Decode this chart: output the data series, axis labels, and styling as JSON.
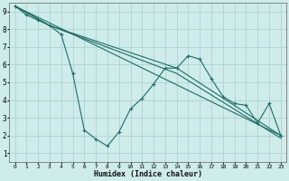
{
  "xlabel": "Humidex (Indice chaleur)",
  "background_color": "#ceecea",
  "grid_color": "#aed4d0",
  "line_color": "#1e6b65",
  "xlim": [
    -0.5,
    23.5
  ],
  "ylim": [
    0.5,
    9.5
  ],
  "xticks": [
    0,
    1,
    2,
    3,
    4,
    5,
    6,
    7,
    8,
    9,
    10,
    11,
    12,
    13,
    14,
    15,
    16,
    17,
    18,
    19,
    20,
    21,
    22,
    23
  ],
  "yticks": [
    1,
    2,
    3,
    4,
    5,
    6,
    7,
    8,
    9
  ],
  "line1_x": [
    0,
    1,
    2,
    3,
    4,
    5,
    6,
    7,
    8,
    9,
    10,
    11,
    12,
    13,
    14,
    15,
    16,
    17,
    18,
    19,
    20,
    21,
    22,
    23
  ],
  "line1_y": [
    9.3,
    8.8,
    8.5,
    8.2,
    7.7,
    5.5,
    2.3,
    1.8,
    1.4,
    2.2,
    3.5,
    4.1,
    4.9,
    5.8,
    5.8,
    6.5,
    6.3,
    5.2,
    4.2,
    3.8,
    3.7,
    2.7,
    3.8,
    2.0
  ],
  "line2_x": [
    0,
    23
  ],
  "line2_y": [
    9.3,
    2.0
  ],
  "line3_x": [
    0,
    3,
    14,
    23
  ],
  "line3_y": [
    9.3,
    8.2,
    5.8,
    2.0
  ],
  "line4_x": [
    0,
    3,
    14,
    23
  ],
  "line4_y": [
    9.3,
    8.2,
    5.5,
    1.85
  ]
}
